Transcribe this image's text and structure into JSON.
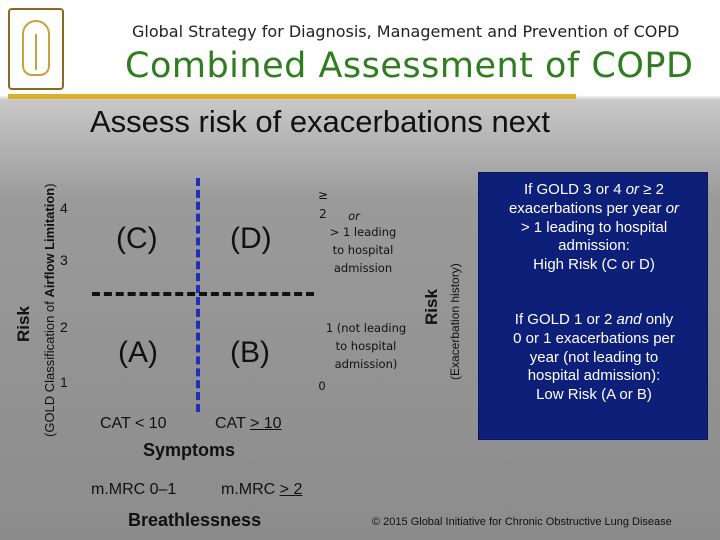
{
  "header": {
    "subtitle": "Global Strategy for Diagnosis, Management and Prevention of COPD",
    "title": "Combined Assessment of COPD",
    "logo_name": "global-initiative-logo"
  },
  "heading": "Assess risk of exacerbations next",
  "y_axis": {
    "risk_label": "Risk",
    "gold_label_pre": "(GOLD Classification of ",
    "gold_label_bold": "Airflow Limitation",
    "gold_label_post": ")",
    "ticks": [
      "4",
      "3",
      "2",
      "1"
    ]
  },
  "grid": {
    "cells": {
      "c": "(C)",
      "d": "(D)",
      "a": "(A)",
      "b": "(B)"
    }
  },
  "x_axis": {
    "cat_low": "CAT < 10",
    "cat_high_pre": "CAT ",
    "cat_high_num": "> 10",
    "symptoms": "Symptoms",
    "mmrc_low": "m.MRC  0–1",
    "mmrc_high_pre": "m.MRC ",
    "mmrc_high_num": "> 2",
    "breathlessness": "Breathlessness"
  },
  "right_axis": {
    "ge2": "≥ 2",
    "or": "or",
    "leading_line1": "> 1  leading",
    "leading_line2": "to  hospital",
    "leading_line3": "admission",
    "one_line1": "1  (not leading",
    "one_line2": "to hospital",
    "one_line3": "admission)",
    "zero": "0",
    "risk_label": "Risk",
    "exac_label": "(Exacerbation history)"
  },
  "box": {
    "high_l1_pre": "If GOLD 3 or 4 ",
    "high_l1_or": "or",
    "high_l1_post": "  ≥ 2",
    "high_l2_pre": "exacerbations per year ",
    "high_l2_or": "or",
    "high_l3": "> 1 leading to hospital",
    "high_l4": "admission:",
    "high_l5": "High Risk (C or D)",
    "low_l1_pre": "If GOLD 1 or 2 ",
    "low_l1_and": "and",
    "low_l1_post": " only",
    "low_l2": "0 or 1 exacerbations per",
    "low_l3": "year (not leading to",
    "low_l4": "hospital admission):",
    "low_l5": "Low Risk (A or B)",
    "color": "#0e1f7a"
  },
  "footer": {
    "copyright": "© 2015 Global Initiative for Chronic Obstructive Lung Disease"
  }
}
